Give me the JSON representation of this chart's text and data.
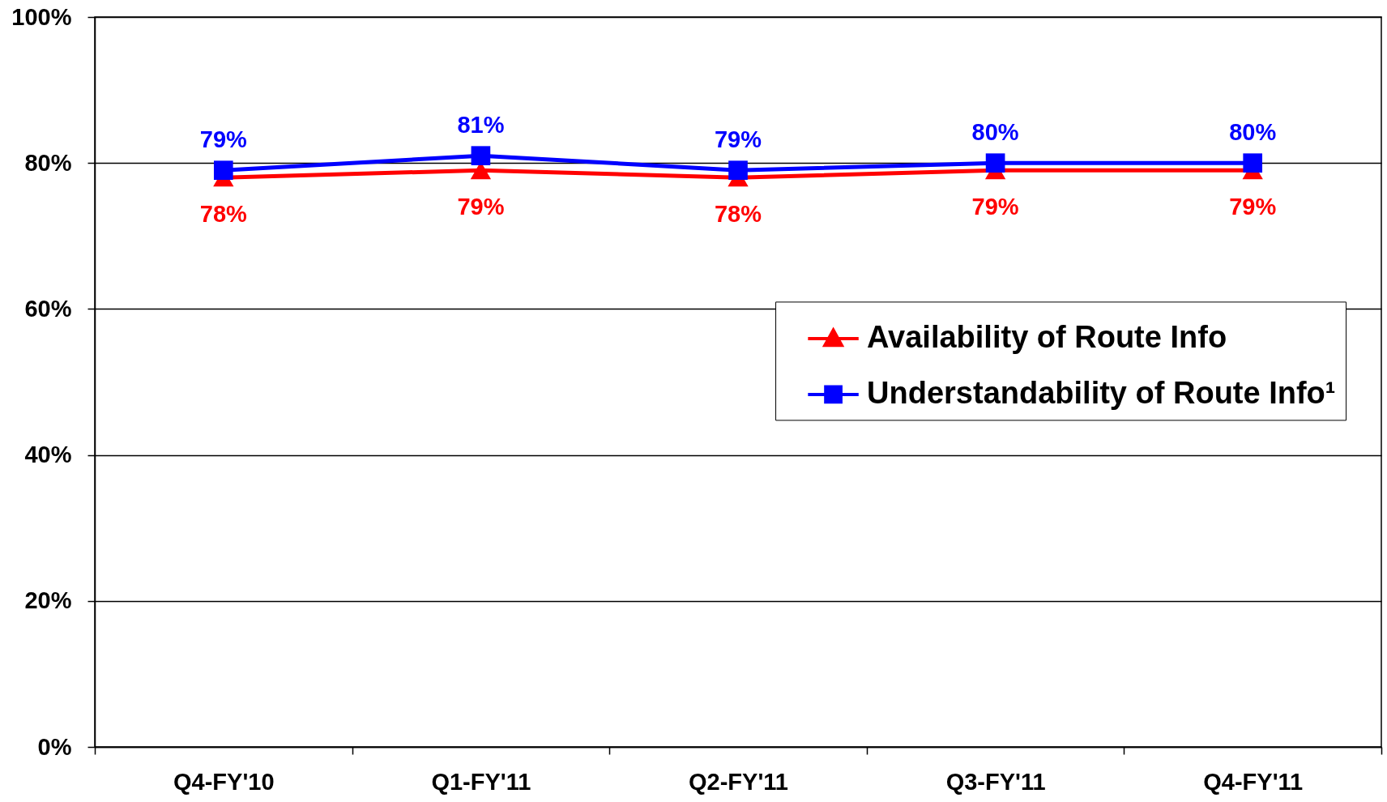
{
  "chart_data": {
    "type": "line",
    "categories": [
      "Q4-FY'10",
      "Q1-FY'11",
      "Q2-FY'11",
      "Q3-FY'11",
      "Q4-FY'11"
    ],
    "series": [
      {
        "name": "Availability of Route Info",
        "color": "#ff0000",
        "marker": "triangle",
        "values": [
          78,
          79,
          78,
          79,
          79
        ],
        "value_labels": [
          "78%",
          "79%",
          "78%",
          "79%",
          "79%"
        ]
      },
      {
        "name": "Understandability of Route Info¹",
        "color": "#0000ff",
        "marker": "square",
        "values": [
          79,
          81,
          79,
          80,
          80
        ],
        "value_labels": [
          "79%",
          "81%",
          "79%",
          "80%",
          "80%"
        ]
      }
    ],
    "ylim": [
      0,
      100
    ],
    "yticks": [
      {
        "value": 0,
        "label": "0%"
      },
      {
        "value": 20,
        "label": "20%"
      },
      {
        "value": 40,
        "label": "40%"
      },
      {
        "value": 60,
        "label": "60%"
      },
      {
        "value": 80,
        "label": "80%"
      },
      {
        "value": 100,
        "label": "100%"
      }
    ],
    "grid": "y",
    "legend": "right",
    "line_style": "solid"
  }
}
